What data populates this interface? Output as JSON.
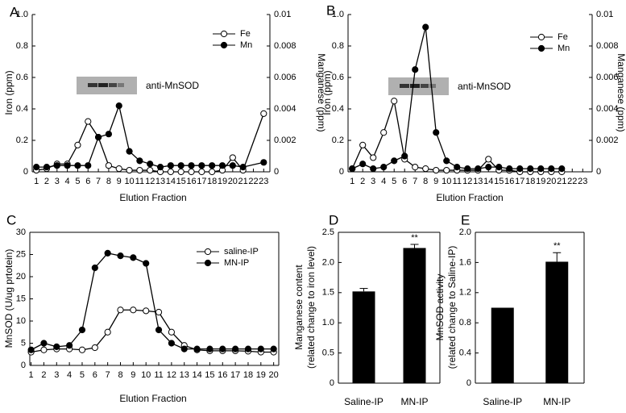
{
  "chart_data": [
    {
      "type": "line",
      "panel": "A",
      "xlabel": "Elution Fraction",
      "ylabel": "Iron (ppm)",
      "y2label": "Manganese (ppm)",
      "inset_label": "anti-MnSOD",
      "x": [
        1,
        2,
        3,
        4,
        5,
        6,
        7,
        8,
        9,
        10,
        11,
        12,
        13,
        14,
        15,
        16,
        17,
        18,
        19,
        20,
        21,
        23
      ],
      "xlim": [
        0.6,
        23.6
      ],
      "xticks": [
        1,
        2,
        3,
        4,
        5,
        6,
        7,
        8,
        9,
        10,
        11,
        12,
        13,
        14,
        15,
        16,
        17,
        18,
        19,
        20,
        21,
        22,
        23
      ],
      "ylim": [
        0,
        1
      ],
      "yticks": [
        0,
        0.2,
        0.4,
        0.6,
        0.8,
        {
          "value": 1,
          "label": "1.0"
        }
      ],
      "y2lim": [
        0,
        0.01
      ],
      "y2ticks": [
        0,
        0.002,
        0.004,
        0.006,
        0.008,
        0.01
      ],
      "series": [
        {
          "name": "Fe",
          "color": "#000000",
          "marker_fill": "#ffffff",
          "values": [
            0.01,
            0.02,
            0.05,
            0.05,
            0.17,
            0.32,
            0.22,
            0.04,
            0.02,
            0.01,
            0.01,
            0.01,
            0,
            0,
            0,
            0,
            0,
            0,
            0.01,
            0.09,
            0.01,
            0.37
          ]
        },
        {
          "name": "Mn",
          "color": "#000000",
          "marker_fill": "#000000",
          "axis": "y2",
          "values": [
            0.0003,
            0.0003,
            0.0004,
            0.0004,
            0.0004,
            0.0004,
            0.0022,
            0.0024,
            0.0042,
            0.0013,
            0.0007,
            0.0005,
            0.0003,
            0.0004,
            0.0004,
            0.0004,
            0.0004,
            0.0004,
            0.0004,
            0.0004,
            0.0003,
            0.0006
          ]
        }
      ]
    },
    {
      "type": "line",
      "panel": "B",
      "xlabel": "Elution Fraction",
      "ylabel": "Iron (ppm)",
      "y2label": "Manganese (ppm)",
      "inset_label": "anti-MnSOD",
      "x": [
        1,
        2,
        3,
        4,
        5,
        6,
        7,
        8,
        9,
        10,
        11,
        12,
        13,
        14,
        15,
        16,
        17,
        18,
        19,
        20,
        21
      ],
      "xlim": [
        0.6,
        23.9
      ],
      "xticks": [
        1,
        2,
        3,
        4,
        5,
        6,
        7,
        8,
        9,
        10,
        11,
        12,
        13,
        14,
        15,
        16,
        17,
        18,
        19,
        20,
        21,
        22,
        23
      ],
      "ylim": [
        0,
        1
      ],
      "yticks": [
        0,
        0.2,
        0.4,
        0.6,
        0.8,
        {
          "value": 1,
          "label": "1.0"
        }
      ],
      "y2lim": [
        0,
        0.01
      ],
      "y2ticks": [
        0,
        0.002,
        0.004,
        0.006,
        0.008,
        0.01
      ],
      "series": [
        {
          "name": "Fe",
          "color": "#000000",
          "marker_fill": "#ffffff",
          "values": [
            0.02,
            0.17,
            0.09,
            0.25,
            0.45,
            0.08,
            0.03,
            0.02,
            0.01,
            0.01,
            0.01,
            0.01,
            0.01,
            0.08,
            0.01,
            0.01,
            0,
            0,
            0,
            0,
            0
          ]
        },
        {
          "name": "Mn",
          "color": "#000000",
          "marker_fill": "#000000",
          "axis": "y2",
          "values": [
            0.0002,
            0.0005,
            0.0002,
            0.0003,
            0.0007,
            0.001,
            0.0065,
            0.0092,
            0.0025,
            0.0007,
            0.0003,
            0.0002,
            0.0002,
            0.0003,
            0.0003,
            0.0002,
            0.0002,
            0.0002,
            0.0002,
            0.0002,
            0.0002
          ]
        }
      ]
    },
    {
      "type": "line",
      "panel": "C",
      "xlabel": "Elution Fraction",
      "ylabel": "MnSOD (U/ug prtotein)",
      "x": [
        1,
        2,
        3,
        4,
        5,
        6,
        7,
        8,
        9,
        10,
        11,
        12,
        13,
        14,
        15,
        16,
        17,
        18,
        19,
        20
      ],
      "xlim": [
        0.9,
        20.4
      ],
      "xticks": [
        1,
        2,
        3,
        4,
        5,
        6,
        7,
        8,
        9,
        10,
        11,
        12,
        13,
        14,
        15,
        16,
        17,
        18,
        19,
        20
      ],
      "ylim": [
        0,
        30
      ],
      "yticks": [
        0,
        5,
        10,
        15,
        20,
        25,
        30
      ],
      "series": [
        {
          "name": "saline-IP",
          "color": "#000000",
          "marker_fill": "#ffffff",
          "values": [
            3,
            3.5,
            3.7,
            3.7,
            3.5,
            4,
            7.5,
            12.5,
            12.5,
            12.3,
            12,
            7.5,
            4.5,
            3.5,
            3.3,
            3.3,
            3.3,
            3.2,
            3,
            3
          ]
        },
        {
          "name": "MN-IP",
          "color": "#000000",
          "marker_fill": "#000000",
          "values": [
            3.5,
            5,
            4.2,
            4.5,
            8,
            22,
            25.3,
            24.7,
            24.3,
            23,
            8,
            5,
            3.7,
            3.7,
            3.7,
            3.7,
            3.7,
            3.7,
            3.7,
            3.7
          ]
        }
      ]
    },
    {
      "type": "bar",
      "panel": "D",
      "ylabel": [
        "Manganese content",
        "(related change to iron level)"
      ],
      "categories": [
        "Saline-IP",
        "MN-IP"
      ],
      "values": [
        1.52,
        2.24
      ],
      "errors": [
        0.05,
        0.06
      ],
      "annotations": [
        null,
        "**"
      ],
      "color": "#000000",
      "ylim": [
        0,
        2.5
      ],
      "yticks": [
        0,
        0.5,
        {
          "value": 1,
          "label": "1.0"
        },
        1.5,
        {
          "value": 2,
          "label": "2.0"
        },
        2.5
      ]
    },
    {
      "type": "bar",
      "panel": "E",
      "ylabel": [
        "MnSOD activity",
        "(related change to Saline-IP)"
      ],
      "categories": [
        "Saline-IP",
        "MN-IP"
      ],
      "values": [
        1,
        1.61
      ],
      "errors": [
        0,
        0.12
      ],
      "annotations": [
        null,
        "**"
      ],
      "color": "#000000",
      "ylim": [
        0,
        2
      ],
      "yticks": [
        0,
        0.4,
        0.8,
        1.2,
        1.6,
        {
          "value": 2,
          "label": "2.0"
        }
      ]
    }
  ]
}
